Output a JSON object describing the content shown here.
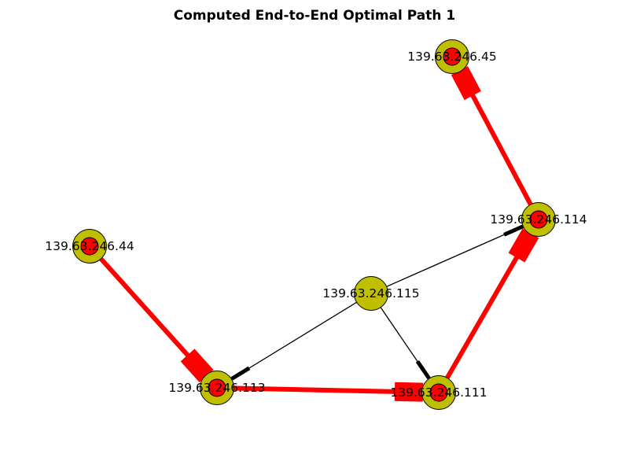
{
  "title": "Computed End-to-End Optimal Path 1",
  "colors": {
    "node_outer": "#bfbf00",
    "node_inner": "#ff0000",
    "path_edge": "#ff0000",
    "normal_edge": "#000000",
    "outline": "#000000"
  },
  "nodes": [
    {
      "id": "n45",
      "label": "139.63.246.45",
      "on_path": true
    },
    {
      "id": "n114",
      "label": "139.63.246.114",
      "on_path": true
    },
    {
      "id": "n44",
      "label": "139.63.246.44",
      "on_path": true
    },
    {
      "id": "n115",
      "label": "139.63.246.115",
      "on_path": false
    },
    {
      "id": "n113",
      "label": "139.63.246.113",
      "on_path": true
    },
    {
      "id": "n111",
      "label": "139.63.246.111",
      "on_path": true
    }
  ],
  "edges": [
    {
      "source": "n114",
      "target": "n45",
      "on_path": true
    },
    {
      "source": "n111",
      "target": "n114",
      "on_path": true
    },
    {
      "source": "n113",
      "target": "n111",
      "on_path": true
    },
    {
      "source": "n44",
      "target": "n113",
      "on_path": true
    },
    {
      "source": "n115",
      "target": "n114",
      "on_path": false
    },
    {
      "source": "n115",
      "target": "n113",
      "on_path": false
    },
    {
      "source": "n115",
      "target": "n111",
      "on_path": false
    }
  ]
}
